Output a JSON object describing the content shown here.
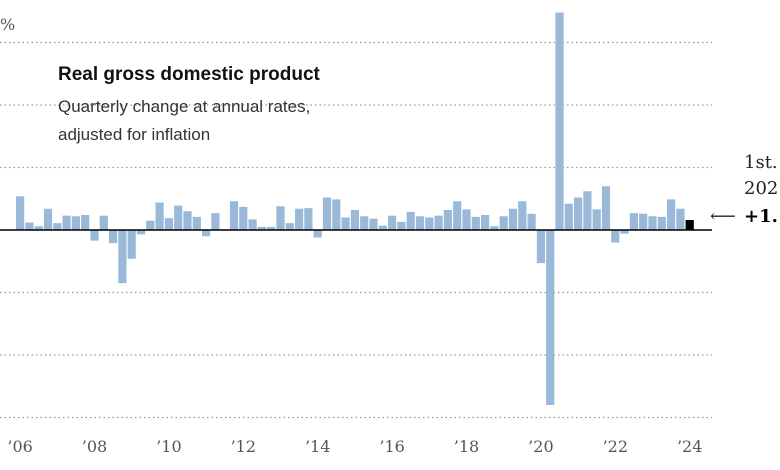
{
  "chart_data": {
    "type": "bar",
    "title": "Real gross domestic product",
    "subtitle_lines": [
      "Quarterly change at annual rates,",
      "adjusted for inflation"
    ],
    "ylabel": "%",
    "ylim": [
      -28,
      35
    ],
    "grid_values": [
      30,
      20,
      10,
      -10,
      -20,
      -30
    ],
    "x_tick_labels": [
      "’06",
      "’08",
      "’10",
      "’12",
      "’14",
      "’16",
      "’18",
      "’20",
      "’22",
      "’24"
    ],
    "x_tick_start_years": [
      2006,
      2008,
      2010,
      2012,
      2014,
      2016,
      2018,
      2020,
      2022,
      2024
    ],
    "start_year": 2006,
    "values": [
      5.4,
      1.2,
      0.6,
      3.4,
      1.1,
      2.3,
      2.2,
      2.4,
      -1.7,
      2.3,
      -2.1,
      -8.5,
      -4.6,
      -0.7,
      1.5,
      4.4,
      1.9,
      3.9,
      3.0,
      2.1,
      -1.0,
      2.7,
      -0.1,
      4.6,
      3.7,
      1.7,
      0.5,
      0.5,
      3.8,
      1.1,
      3.4,
      3.5,
      -1.2,
      5.2,
      4.9,
      2.0,
      3.2,
      2.2,
      1.8,
      0.7,
      2.3,
      1.3,
      2.9,
      2.2,
      2.0,
      2.3,
      3.2,
      4.6,
      3.3,
      2.1,
      2.4,
      0.6,
      2.2,
      3.4,
      4.6,
      2.6,
      -5.3,
      -28.0,
      34.8,
      4.2,
      5.2,
      6.2,
      3.3,
      7.0,
      -2.0,
      -0.6,
      2.7,
      2.6,
      2.2,
      2.1,
      4.9,
      3.4,
      1.6
    ],
    "highlight_index": 72,
    "colors": {
      "bar": "#9ab9d8",
      "highlight": "#000000",
      "zero_line": "#000000",
      "grid": "#999999"
    },
    "annotation": {
      "line1": "1st.",
      "line2": "202",
      "value": "+1."
    }
  }
}
